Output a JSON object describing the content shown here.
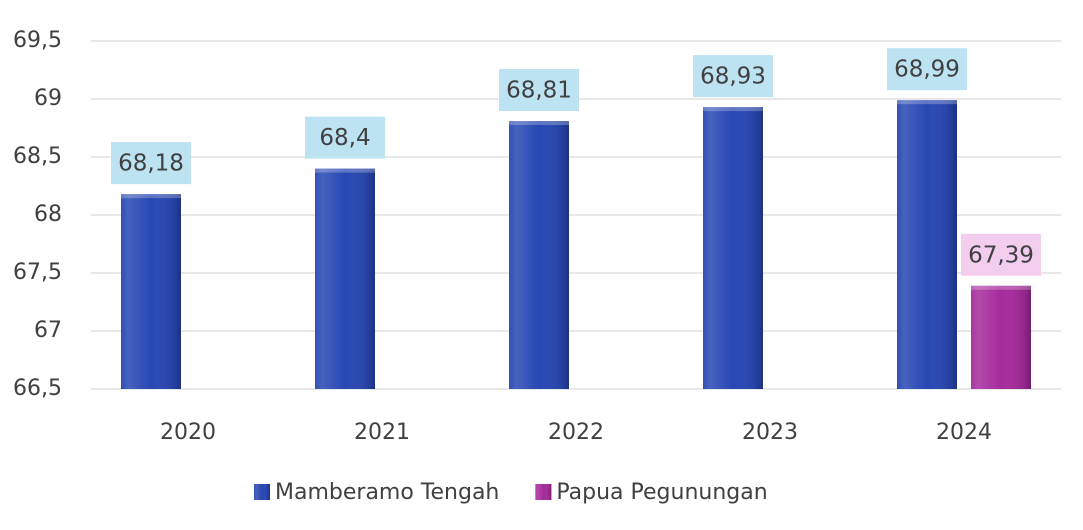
{
  "chart_data": {
    "type": "bar",
    "categories": [
      "2020",
      "2021",
      "2022",
      "2023",
      "2024"
    ],
    "series": [
      {
        "name": "Mamberamo Tengah",
        "color": "#2747b3",
        "label_color": "#bde3f2",
        "values": [
          68.18,
          68.4,
          68.81,
          68.93,
          68.99
        ],
        "value_labels": [
          "68,18",
          "68,4",
          "68,81",
          "68,93",
          "68,99"
        ]
      },
      {
        "name": "Papua Pegunungan",
        "color": "#a62a9c",
        "label_color": "#f3cdee",
        "values": [
          null,
          null,
          null,
          null,
          67.39
        ],
        "value_labels": [
          null,
          null,
          null,
          null,
          "67,39"
        ]
      }
    ],
    "ylim": [
      66.5,
      69.5
    ],
    "yticks": [
      {
        "value": 66.5,
        "label": "66,5"
      },
      67,
      {
        "value": 67.5,
        "label": "67,5"
      },
      68,
      {
        "value": 68.5,
        "label": "68,5"
      },
      69,
      {
        "value": 69.5,
        "label": "69,5"
      }
    ],
    "grid": true,
    "legend": "bottom"
  }
}
